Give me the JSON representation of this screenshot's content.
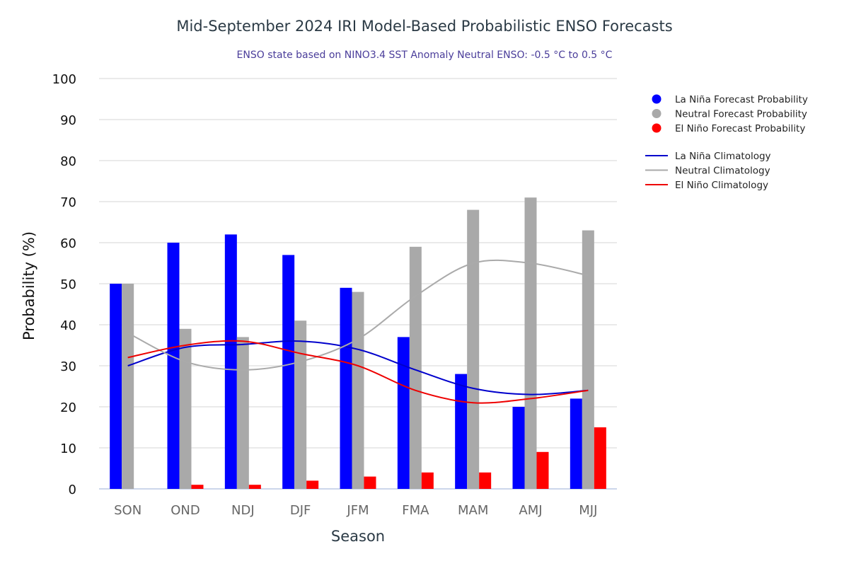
{
  "chart_data": {
    "type": "bar",
    "title": "Mid-September 2024 IRI Model-Based Probabilistic ENSO Forecasts",
    "subtitle": "ENSO state based on NINO3.4 SST Anomaly Neutral ENSO: -0.5 °C to 0.5 °C",
    "xlabel": "Season",
    "ylabel": "Probability (%)",
    "ylim": [
      0,
      100
    ],
    "yticks": [
      0,
      10,
      20,
      30,
      40,
      50,
      60,
      70,
      80,
      90,
      100
    ],
    "grid": true,
    "legend_position": "top-right",
    "categories": [
      "SON",
      "OND",
      "NDJ",
      "DJF",
      "JFM",
      "FMA",
      "MAM",
      "AMJ",
      "MJJ"
    ],
    "series": [
      {
        "name": "La Niña Forecast Probability",
        "kind": "bar",
        "color": "#0000ff",
        "values": [
          50,
          60,
          62,
          57,
          49,
          37,
          28,
          20,
          22
        ]
      },
      {
        "name": "Neutral Forecast Probability",
        "kind": "bar",
        "color": "#a9a9a9",
        "values": [
          50,
          39,
          37,
          41,
          48,
          59,
          68,
          71,
          63
        ]
      },
      {
        "name": "El Niño Forecast Probability",
        "kind": "bar",
        "color": "#ff0000",
        "values": [
          0,
          1,
          1,
          2,
          3,
          4,
          4,
          9,
          15
        ]
      },
      {
        "name": "La Niña Climatology",
        "kind": "line",
        "color": "#0000cc",
        "values": [
          30,
          34.5,
          35.2,
          36,
          34,
          29,
          24.5,
          23,
          24
        ]
      },
      {
        "name": "Neutral Climatology",
        "kind": "line",
        "color": "#aaaaaa",
        "values": [
          38,
          31,
          29,
          31,
          36.5,
          47,
          55,
          55,
          52
        ]
      },
      {
        "name": "El Niño Climatology",
        "kind": "line",
        "color": "#ee0000",
        "values": [
          32,
          35,
          36,
          33,
          30,
          24,
          21,
          22,
          24
        ]
      }
    ]
  }
}
